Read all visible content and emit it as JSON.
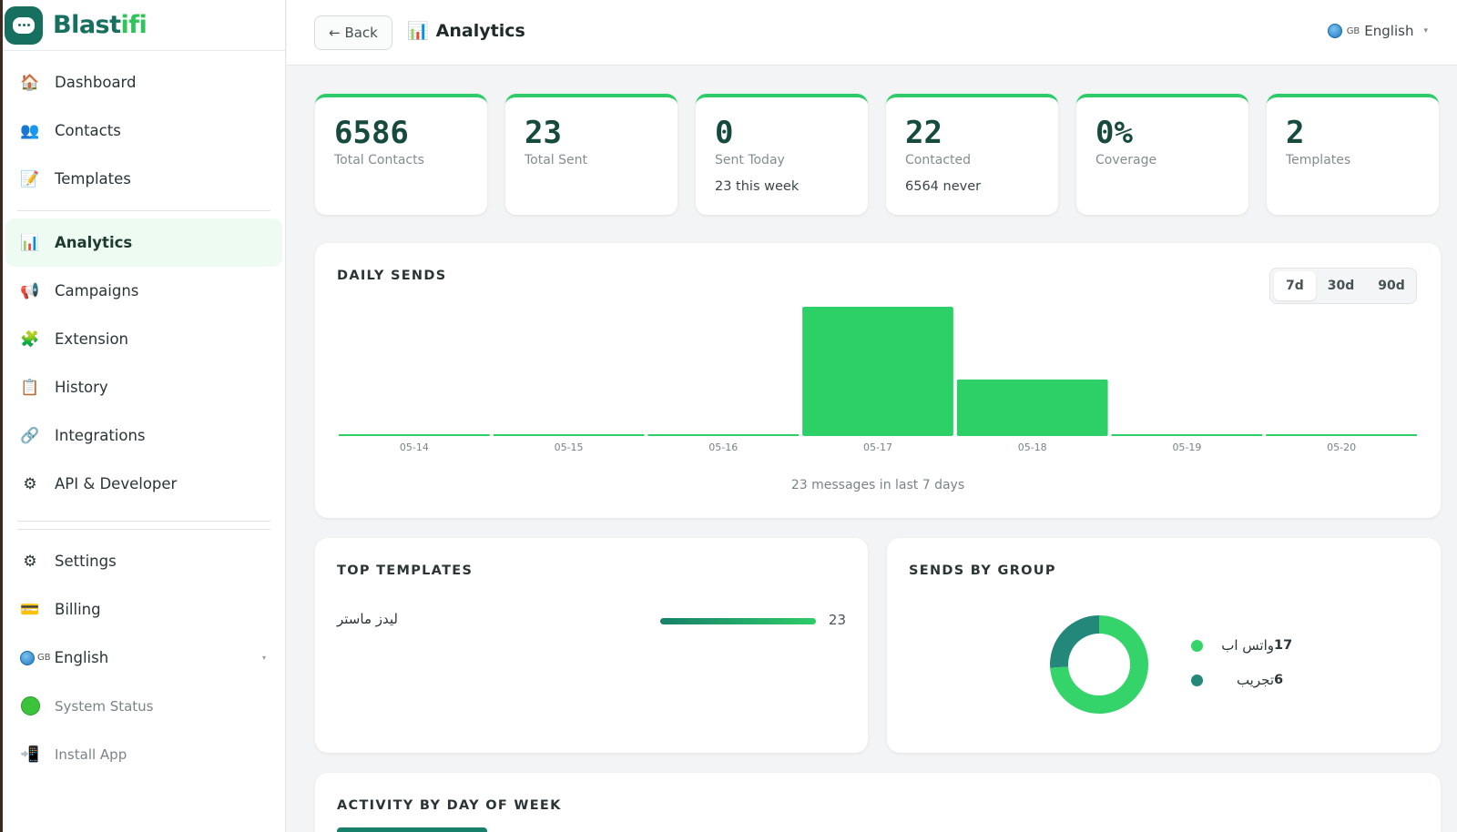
{
  "brand": {
    "name_a": "Blast",
    "name_b": "ifi"
  },
  "sidebar": {
    "items": [
      {
        "label": "Dashboard",
        "icon": "house-icon",
        "glyph": "🏠"
      },
      {
        "label": "Contacts",
        "icon": "people-icon",
        "glyph": "👥"
      },
      {
        "label": "Templates",
        "icon": "memo-icon",
        "glyph": "📝"
      },
      {
        "label": "Analytics",
        "icon": "bar-chart-icon",
        "glyph": "📊",
        "active": true
      },
      {
        "label": "Campaigns",
        "icon": "megaphone-icon",
        "glyph": "📢"
      },
      {
        "label": "Extension",
        "icon": "puzzle-icon",
        "glyph": "🧩"
      },
      {
        "label": "History",
        "icon": "clipboard-icon",
        "glyph": "📋"
      },
      {
        "label": "Integrations",
        "icon": "link-icon",
        "glyph": "🔗"
      },
      {
        "label": "API & Developer",
        "icon": "gear-icon",
        "glyph": "⚙"
      },
      {
        "label": "Settings",
        "icon": "gear-icon",
        "glyph": "⚙"
      },
      {
        "label": "Billing",
        "icon": "credit-card-icon",
        "glyph": "💳"
      }
    ],
    "language": {
      "flag": "GB",
      "label": "English"
    },
    "system_status": "System Status",
    "install_app": "Install App"
  },
  "header": {
    "back_label": "← Back",
    "title": "Analytics",
    "language": {
      "flag": "GB",
      "label": "English"
    }
  },
  "stats": [
    {
      "value": "6586",
      "label": "Total Contacts",
      "sub": ""
    },
    {
      "value": "23",
      "label": "Total Sent",
      "sub": ""
    },
    {
      "value": "0",
      "label": "Sent Today",
      "sub": "23 this week"
    },
    {
      "value": "22",
      "label": "Contacted",
      "sub": "6564 never"
    },
    {
      "value": "0%",
      "label": "Coverage",
      "sub": ""
    },
    {
      "value": "2",
      "label": "Templates",
      "sub": ""
    }
  ],
  "daily_sends": {
    "title": "DAILY SENDS",
    "ranges": [
      "7d",
      "30d",
      "90d"
    ],
    "active_range": "7d",
    "caption": "23 messages in last 7 days"
  },
  "chart_data": [
    {
      "type": "bar",
      "categories": [
        "05-14",
        "05-15",
        "05-16",
        "05-17",
        "05-18",
        "05-19",
        "05-20"
      ],
      "values": [
        0,
        0,
        0,
        16,
        7,
        0,
        0
      ],
      "title": "DAILY SENDS",
      "xlabel": "",
      "ylabel": "",
      "ylim": [
        0,
        16
      ],
      "color": "#2dd067",
      "grid": false
    },
    {
      "type": "pie",
      "title": "SENDS BY GROUP",
      "series": [
        {
          "name": "واتس اب",
          "value": 17,
          "color": "#34d46b"
        },
        {
          "name": "تجريب",
          "value": 6,
          "color": "#23877a"
        }
      ],
      "donut": true,
      "legend": "right"
    }
  ],
  "top_templates": {
    "title": "TOP TEMPLATES",
    "rows": [
      {
        "name": "ليدز ماستر",
        "count": "23",
        "fraction": 1.0
      }
    ]
  },
  "groups": {
    "title": "SENDS BY GROUP",
    "items": [
      {
        "name": "واتس اب",
        "value": "17",
        "color": "#34d46b"
      },
      {
        "name": "تجريب",
        "value": "6",
        "color": "#23877a"
      }
    ]
  },
  "activity": {
    "title": "ACTIVITY BY DAY OF WEEK"
  }
}
